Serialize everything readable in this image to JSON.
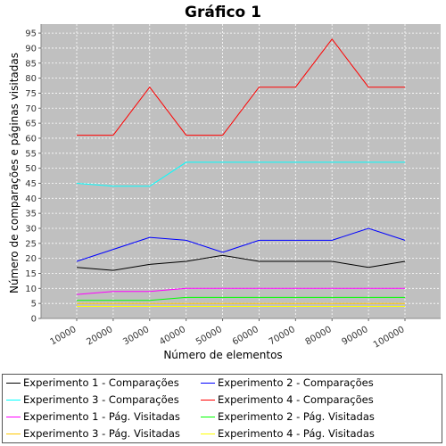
{
  "chart_data": {
    "type": "line",
    "title": "Gráfico 1",
    "xlabel": "Número de elementos",
    "ylabel": "Número de comparações e páginas visitadas",
    "categories": [
      "10000",
      "20000",
      "30000",
      "40000",
      "50000",
      "60000",
      "70000",
      "80000",
      "90000",
      "100000"
    ],
    "yticks": [
      0,
      5,
      10,
      15,
      20,
      25,
      30,
      35,
      40,
      45,
      50,
      55,
      60,
      65,
      70,
      75,
      80,
      85,
      90,
      95
    ],
    "ylim": [
      0,
      98
    ],
    "grid": true,
    "legend_position": "bottom",
    "series": [
      {
        "name": "Experimento 1 - Comparações",
        "color": "#000000",
        "values": [
          17,
          16,
          18,
          19,
          21,
          19,
          19,
          19,
          17,
          19
        ]
      },
      {
        "name": "Experimento 2 - Comparações",
        "color": "#0000ff",
        "values": [
          19,
          23,
          27,
          26,
          22,
          26,
          26,
          26,
          30,
          26
        ]
      },
      {
        "name": "Experimento 3 - Comparações",
        "color": "#00ffff",
        "values": [
          45,
          44,
          44,
          52,
          52,
          52,
          52,
          52,
          52,
          52
        ]
      },
      {
        "name": "Experimento 4 - Comparações",
        "color": "#ff0000",
        "values": [
          61,
          61,
          77,
          61,
          61,
          77,
          77,
          93,
          77,
          77
        ]
      },
      {
        "name": "Experimento 1 - Pág. Visitadas",
        "color": "#ff00ff",
        "values": [
          8,
          9,
          9,
          10,
          10,
          10,
          10,
          10,
          10,
          10
        ]
      },
      {
        "name": "Experimento 2 - Pág. Visitadas",
        "color": "#00ff00",
        "values": [
          6,
          6,
          6,
          7,
          7,
          7,
          7,
          7,
          7,
          7
        ]
      },
      {
        "name": "Experimento 3 - Pág. Visitadas",
        "color": "#ffc800",
        "values": [
          5,
          5,
          5,
          5,
          5,
          5,
          5,
          5,
          5,
          5
        ]
      },
      {
        "name": "Experimento 4 - Pág. Visitadas",
        "color": "#ffff00",
        "values": [
          4,
          4,
          4,
          4,
          4,
          4,
          4,
          4,
          4,
          4
        ]
      }
    ]
  }
}
